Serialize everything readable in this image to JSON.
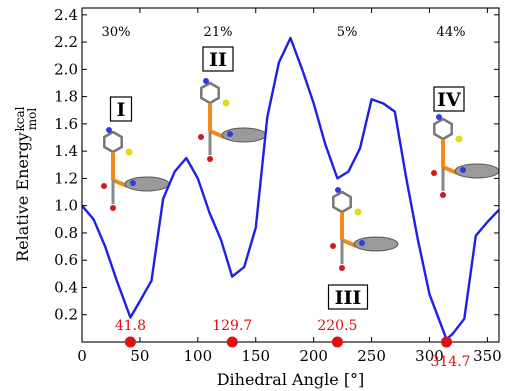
{
  "chart_data": {
    "type": "line",
    "xlabel": "Dihedral Angle [°]",
    "ylabel_main": "Relative Energy",
    "ylabel_unit_num": "kcal",
    "ylabel_unit_den": "mol",
    "xlim": [
      0,
      360
    ],
    "ylim": [
      0,
      2.45
    ],
    "xticks": [
      0,
      50,
      100,
      150,
      200,
      250,
      300,
      350
    ],
    "yticks": [
      0.2,
      0.4,
      0.6,
      0.8,
      1.0,
      1.2,
      1.4,
      1.6,
      1.8,
      2.0,
      2.2,
      2.4
    ],
    "line_color": "#1f1fe8",
    "marker_color": "#e01010",
    "grid": false,
    "series": [
      {
        "x": [
          0,
          10,
          20,
          30,
          41.8,
          50,
          60,
          70,
          80,
          90,
          100,
          110,
          120,
          129.7,
          140,
          150,
          160,
          170,
          180,
          190,
          200,
          210,
          220.5,
          230,
          240,
          250,
          260,
          270,
          280,
          290,
          300,
          314.7,
          320,
          330,
          340,
          350,
          360
        ],
        "y": [
          1.0,
          0.9,
          0.7,
          0.45,
          0.18,
          0.3,
          0.45,
          1.05,
          1.25,
          1.35,
          1.2,
          0.95,
          0.75,
          0.48,
          0.55,
          0.84,
          1.65,
          2.05,
          2.23,
          2.0,
          1.75,
          1.45,
          1.2,
          1.25,
          1.42,
          1.78,
          1.75,
          1.69,
          1.2,
          0.75,
          0.35,
          0.02,
          0.06,
          0.17,
          0.78,
          0.88,
          0.97
        ]
      }
    ],
    "minima": [
      {
        "x": 41.8,
        "label": "41.8",
        "roman": "I",
        "population": "30%"
      },
      {
        "x": 129.7,
        "label": "129.7",
        "roman": "II",
        "population": "21%"
      },
      {
        "x": 220.5,
        "label": "220.5",
        "roman": "III",
        "population": "5%"
      },
      {
        "x": 314.7,
        "label": "314.7",
        "roman": "IV",
        "population": "44%"
      }
    ]
  }
}
